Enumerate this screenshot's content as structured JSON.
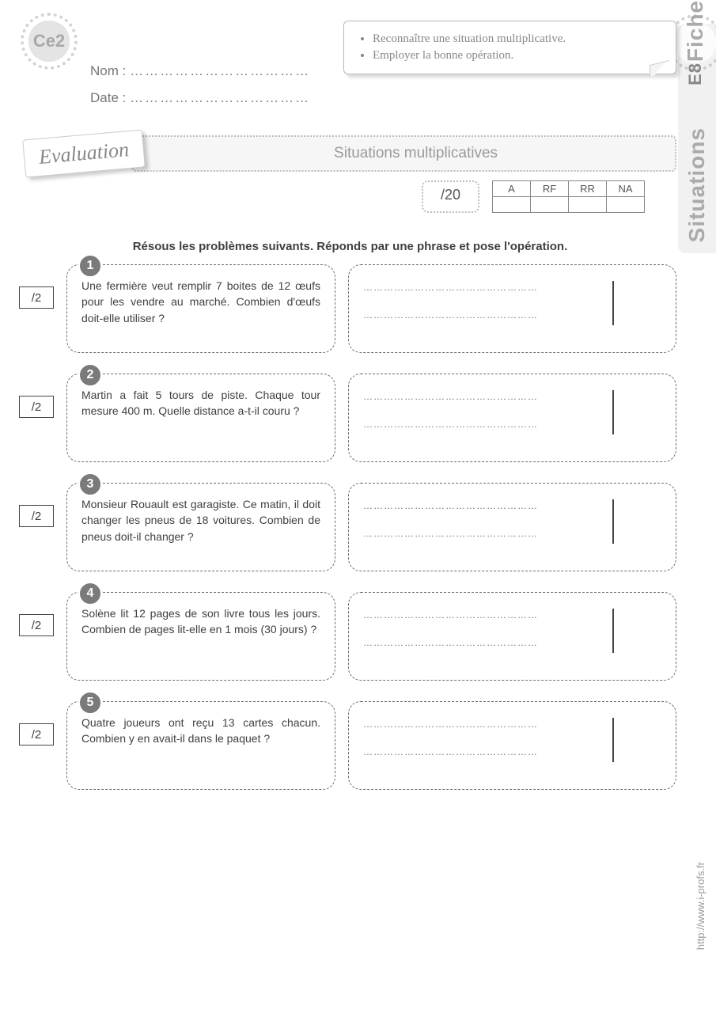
{
  "header": {
    "grade_badge": "Ce2",
    "fiche_label": "Fiche",
    "fiche_code": "E8",
    "side_tab": "Situations",
    "objectives": [
      "Reconnaître une situation multiplicative.",
      "Employer la bonne opération."
    ],
    "name_label": "Nom :",
    "date_label": "Date :",
    "dotted_line": "………………………………"
  },
  "eval": {
    "label": "Evaluation",
    "title": "Situations multiplicatives",
    "total_score": "/20",
    "grade_cols": [
      "A",
      "RF",
      "RR",
      "NA"
    ]
  },
  "instruction": "Résous les problèmes suivants. Réponds par une phrase et pose l'opération.",
  "answer_dots": "……………………………………………",
  "problems": [
    {
      "num": "1",
      "points": "/2",
      "text": "Une fermière veut remplir 7 boites de 12 œufs pour les vendre au marché. Combien d'œufs doit-elle utiliser ?"
    },
    {
      "num": "2",
      "points": "/2",
      "text": "Martin a fait 5 tours de piste. Chaque tour mesure 400 m. Quelle distance a-t-il couru ?"
    },
    {
      "num": "3",
      "points": "/2",
      "text": "Monsieur Rouault est garagiste. Ce matin, il doit changer les pneus de 18 voitures. Combien de pneus doit-il changer ?"
    },
    {
      "num": "4",
      "points": "/2",
      "text": "Solène lit 12 pages de son livre tous les jours. Combien de pages lit-elle en 1 mois (30 jours) ?"
    },
    {
      "num": "5",
      "points": "/2",
      "text": "Quatre joueurs ont reçu 13 cartes chacun. Combien y en avait-il dans le paquet ?"
    }
  ],
  "footer_url": "http://www.i-profs.fr",
  "colors": {
    "badge_gray": "#a8a8a8",
    "box_border": "#6b6b6b",
    "num_circle": "#7a7a7a",
    "title_bg": "#f6f6f6"
  }
}
